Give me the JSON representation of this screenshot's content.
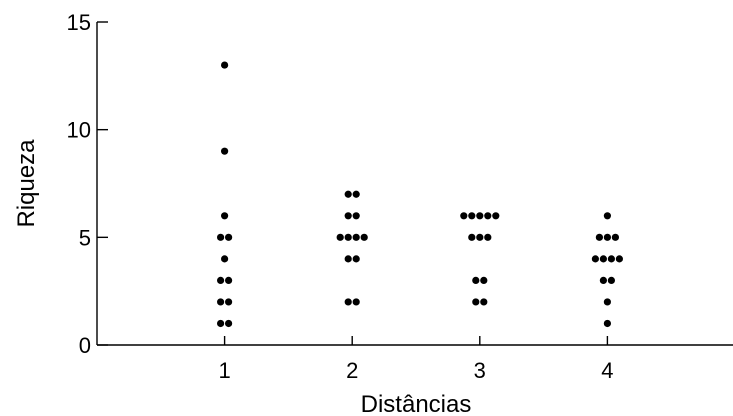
{
  "chart_data": {
    "type": "scatter",
    "title": "",
    "xlabel": "Distâncias",
    "ylabel": "Riqueza",
    "xlim": [
      0,
      5
    ],
    "ylim": [
      0,
      15
    ],
    "x_ticks": [
      1,
      2,
      3,
      4
    ],
    "y_ticks": [
      0,
      5,
      10,
      15
    ],
    "grid": false,
    "legend": "none",
    "colors": {
      "points": "#000000",
      "axes": "#000000"
    },
    "points": [
      {
        "x": 1,
        "y": 13
      },
      {
        "x": 1,
        "y": 9
      },
      {
        "x": 1,
        "y": 6
      },
      {
        "x": 1,
        "y": 5
      },
      {
        "x": 1,
        "y": 5
      },
      {
        "x": 1,
        "y": 4
      },
      {
        "x": 1,
        "y": 3
      },
      {
        "x": 1,
        "y": 3
      },
      {
        "x": 1,
        "y": 2
      },
      {
        "x": 1,
        "y": 2
      },
      {
        "x": 1,
        "y": 1
      },
      {
        "x": 1,
        "y": 1
      },
      {
        "x": 2,
        "y": 7
      },
      {
        "x": 2,
        "y": 7
      },
      {
        "x": 2,
        "y": 6
      },
      {
        "x": 2,
        "y": 6
      },
      {
        "x": 2,
        "y": 5
      },
      {
        "x": 2,
        "y": 5
      },
      {
        "x": 2,
        "y": 5
      },
      {
        "x": 2,
        "y": 5
      },
      {
        "x": 2,
        "y": 4
      },
      {
        "x": 2,
        "y": 4
      },
      {
        "x": 2,
        "y": 2
      },
      {
        "x": 2,
        "y": 2
      },
      {
        "x": 3,
        "y": 6
      },
      {
        "x": 3,
        "y": 6
      },
      {
        "x": 3,
        "y": 6
      },
      {
        "x": 3,
        "y": 6
      },
      {
        "x": 3,
        "y": 6
      },
      {
        "x": 3,
        "y": 5
      },
      {
        "x": 3,
        "y": 5
      },
      {
        "x": 3,
        "y": 5
      },
      {
        "x": 3,
        "y": 3
      },
      {
        "x": 3,
        "y": 3
      },
      {
        "x": 3,
        "y": 2
      },
      {
        "x": 3,
        "y": 2
      },
      {
        "x": 4,
        "y": 6
      },
      {
        "x": 4,
        "y": 5
      },
      {
        "x": 4,
        "y": 5
      },
      {
        "x": 4,
        "y": 5
      },
      {
        "x": 4,
        "y": 4
      },
      {
        "x": 4,
        "y": 4
      },
      {
        "x": 4,
        "y": 4
      },
      {
        "x": 4,
        "y": 4
      },
      {
        "x": 4,
        "y": 3
      },
      {
        "x": 4,
        "y": 3
      },
      {
        "x": 4,
        "y": 2
      },
      {
        "x": 4,
        "y": 1
      }
    ]
  }
}
